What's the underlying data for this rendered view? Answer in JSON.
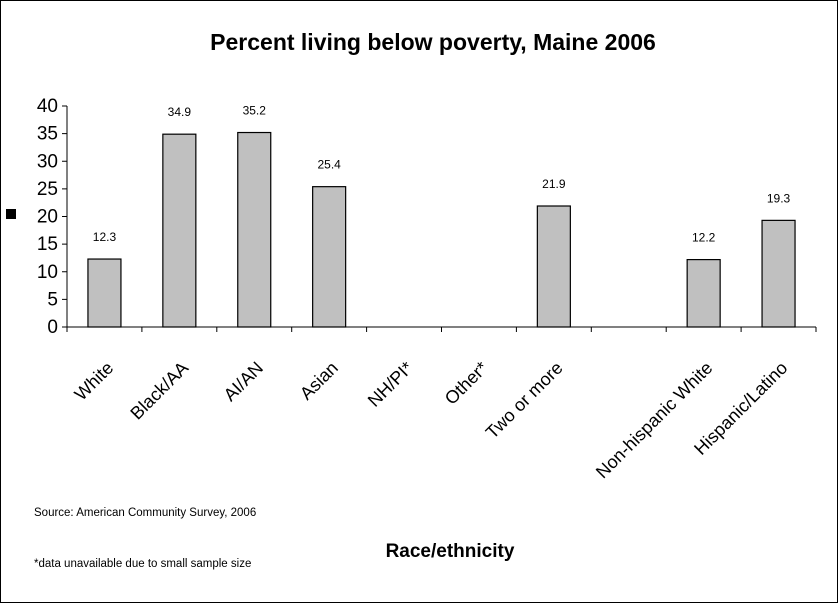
{
  "chart_data": {
    "type": "bar",
    "title": "Percent living below poverty, Maine 2006",
    "xlabel": "Race/ethnicity",
    "ylabel": "",
    "ylim": [
      0,
      40
    ],
    "yticks": [
      0,
      5,
      10,
      15,
      20,
      25,
      30,
      35,
      40
    ],
    "categories": [
      "White",
      "Black/AA",
      "AI/AN",
      "Asian",
      "NH/PI*",
      "Other*",
      "Two or more",
      "",
      "Non-hispanic White",
      "Hispanic/Latino"
    ],
    "values": [
      12.3,
      34.9,
      35.2,
      25.4,
      null,
      null,
      21.9,
      null,
      12.2,
      19.3
    ],
    "data_labels": [
      "12.3",
      "34.9",
      "35.2",
      "25.4",
      "",
      "",
      "21.9",
      "",
      "12.2",
      "19.3"
    ],
    "bar_color": "#c0c0c0",
    "grid": false,
    "legend": "left",
    "source_note": "Source: American Community Survey, 2006",
    "footnote": "*data unavailable due to small sample size"
  }
}
